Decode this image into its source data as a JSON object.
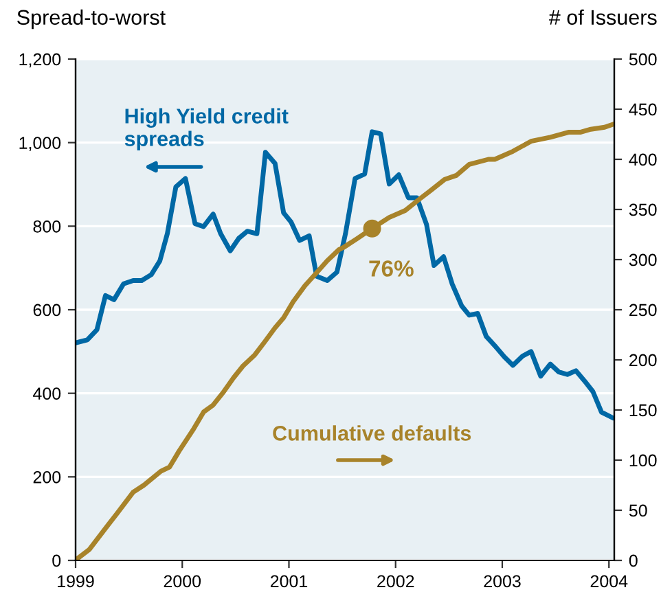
{
  "chart_data": {
    "type": "line",
    "ylabel": "Spread-to-worst",
    "y2label": "# of Issuers",
    "xlim": [
      1999,
      2004.05
    ],
    "xticks": [
      1999,
      2000,
      2001,
      2002,
      2003,
      2004
    ],
    "ylim": [
      0,
      1200
    ],
    "yticks": [
      0,
      200,
      400,
      600,
      800,
      {
        "value": 1000,
        "label": "1,000"
      },
      {
        "value": 1200,
        "label": "1,200"
      }
    ],
    "y2lim": [
      0,
      500
    ],
    "y2ticks": [
      0,
      50,
      100,
      150,
      200,
      250,
      300,
      350,
      400,
      450,
      500
    ],
    "grid": "y",
    "legend": false,
    "line_style": "solid",
    "series": [
      {
        "name": "High Yield credit\nspreads",
        "color": "#0068a5",
        "marker": "none",
        "x": [
          1999.02,
          1999.11,
          1999.2,
          1999.28,
          1999.36,
          1999.45,
          1999.54,
          1999.62,
          1999.71,
          1999.79,
          1999.86,
          1999.94,
          2000.03,
          2000.12,
          2000.2,
          2000.29,
          2000.36,
          2000.45,
          2000.53,
          2000.61,
          2000.7,
          2000.78,
          2000.87,
          2000.95,
          2001.02,
          2001.1,
          2001.19,
          2001.26,
          2001.36,
          2001.45,
          2001.53,
          2001.62,
          2001.71,
          2001.78,
          2001.86,
          2001.94,
          2002.03,
          2002.12,
          2002.2,
          2002.29,
          2002.36,
          2002.45,
          2002.53,
          2002.62,
          2002.69,
          2002.77,
          2002.85,
          2002.94,
          2003.02,
          2003.1,
          2003.19,
          2003.27,
          2003.36,
          2003.45,
          2003.53,
          2003.61,
          2003.69,
          2003.77,
          2003.85,
          2003.93,
          2004.03
        ],
        "values": [
          522,
          528,
          552,
          634,
          624,
          662,
          670,
          670,
          684,
          717,
          782,
          894,
          914,
          806,
          799,
          829,
          782,
          741,
          771,
          788,
          782,
          977,
          950,
          832,
          810,
          766,
          777,
          680,
          670,
          690,
          782,
          914,
          925,
          1026,
          1021,
          901,
          923,
          868,
          868,
          804,
          706,
          727,
          662,
          609,
          587,
          591,
          536,
          511,
          487,
          467,
          489,
          500,
          441,
          470,
          451,
          445,
          454,
          430,
          404,
          355,
          342
        ]
      },
      {
        "name": "Cumulative defaults",
        "color": "#a8832a",
        "axis": "y2",
        "marker": "none",
        "x": [
          1999.02,
          1999.13,
          1999.28,
          1999.39,
          1999.54,
          1999.64,
          1999.8,
          1999.88,
          1999.97,
          2000.1,
          2000.2,
          2000.29,
          2000.38,
          2000.48,
          2000.57,
          2000.68,
          2000.78,
          2000.87,
          2000.95,
          2001.04,
          2001.15,
          2001.26,
          2001.36,
          2001.47,
          2001.51,
          2001.64,
          2001.78,
          2001.94,
          2002.09,
          2002.22,
          2002.33,
          2002.46,
          2002.57,
          2002.69,
          2002.87,
          2002.93,
          2003.1,
          2003.27,
          2003.45,
          2003.62,
          2003.73,
          2003.83,
          2003.96,
          2004.04
        ],
        "values": [
          2,
          11,
          32,
          47,
          68,
          75,
          89,
          93,
          109,
          130,
          148,
          155,
          167,
          182,
          194,
          205,
          219,
          232,
          242,
          258,
          274,
          287,
          299,
          310,
          312,
          321,
          331,
          342,
          349,
          360,
          369,
          380,
          384,
          395,
          400,
          400,
          408,
          418,
          422,
          427,
          427,
          430,
          432,
          435
        ]
      },
      {
        "type": "scatter",
        "marker": "circle",
        "color": "#a8832a",
        "axis": "y2",
        "x": [
          2001.78
        ],
        "values": [
          331
        ]
      }
    ],
    "annotations": [
      "76%"
    ]
  }
}
